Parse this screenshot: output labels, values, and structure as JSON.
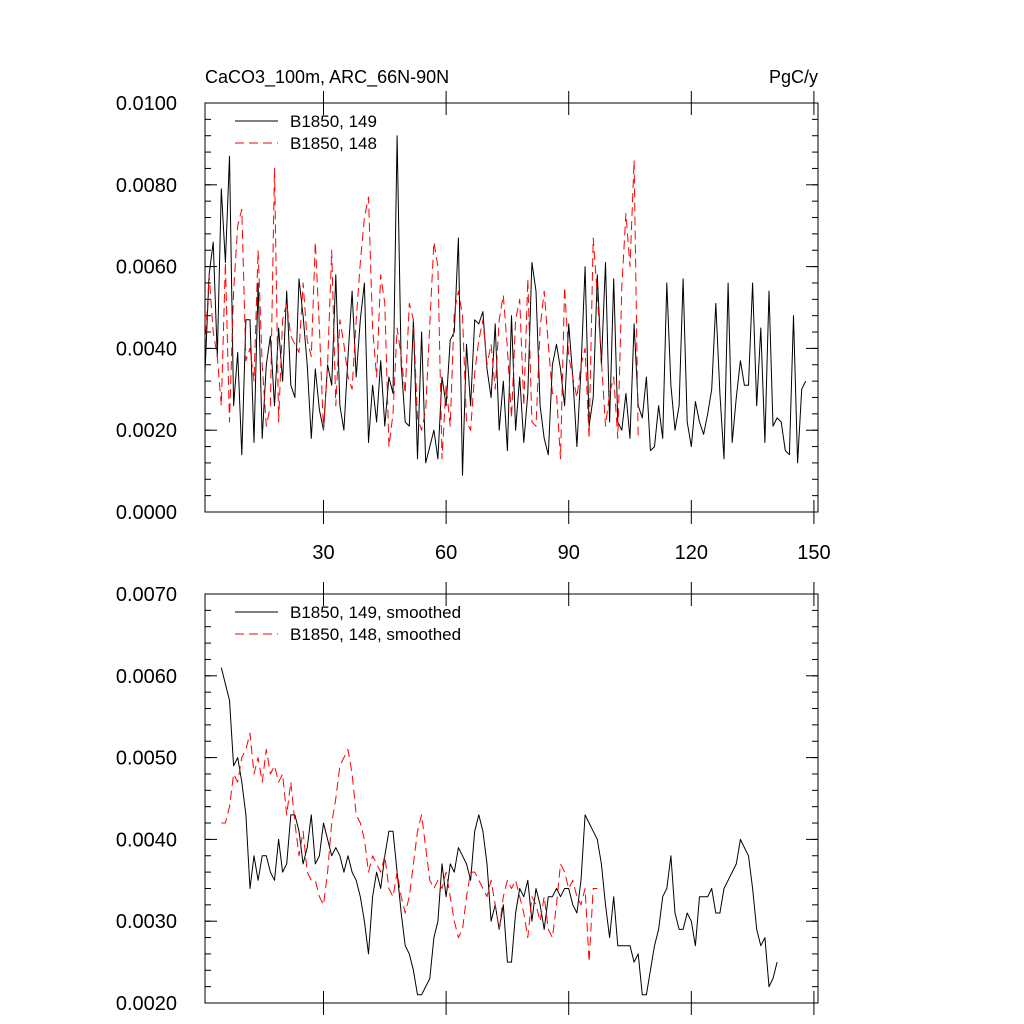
{
  "chart_data": [
    {
      "type": "line",
      "title": "CaCO3_100m, ARC_66N-90N",
      "units": "PgC/y",
      "xlim": [
        1,
        151
      ],
      "ylim": [
        0.0,
        0.01
      ],
      "yticks": [
        0.0,
        0.002,
        0.004,
        0.006,
        0.008,
        0.01
      ],
      "ytick_labels": [
        "0.0000",
        "0.0020",
        "0.0040",
        "0.0060",
        "0.0080",
        "0.0100"
      ],
      "xticks": [
        30,
        60,
        90,
        120,
        150
      ],
      "xtick_labels": [
        "30",
        "60",
        "90",
        "120",
        "150"
      ],
      "legend_position": "top-left",
      "series": [
        {
          "name": "B1850, 149",
          "color": "#000000",
          "dash": "solid",
          "x_start": 1,
          "values": [
            0.0034,
            0.0058,
            0.0066,
            0.0038,
            0.0079,
            0.0061,
            0.0087,
            0.0026,
            0.0039,
            0.0014,
            0.0047,
            0.0047,
            0.0017,
            0.0056,
            0.0018,
            0.0036,
            0.0043,
            0.0026,
            0.0045,
            0.0032,
            0.0054,
            0.0031,
            0.0028,
            0.0057,
            0.0048,
            0.0036,
            0.0018,
            0.0035,
            0.0025,
            0.002,
            0.0036,
            0.0031,
            0.0058,
            0.0026,
            0.002,
            0.0038,
            0.0054,
            0.0033,
            0.0047,
            0.0056,
            0.0017,
            0.0031,
            0.0022,
            0.0037,
            0.0021,
            0.0033,
            0.0029,
            0.0092,
            0.0036,
            0.0022,
            0.0021,
            0.0047,
            0.0013,
            0.0044,
            0.0012,
            0.0016,
            0.002,
            0.0013,
            0.0033,
            0.0026,
            0.0042,
            0.0044,
            0.0067,
            0.0009,
            0.0041,
            0.0026,
            0.0047,
            0.0046,
            0.0049,
            0.0035,
            0.0028,
            0.0046,
            0.002,
            0.0032,
            0.0015,
            0.0048,
            0.002,
            0.0033,
            0.0017,
            0.0029,
            0.0061,
            0.0054,
            0.0026,
            0.0018,
            0.0014,
            0.0036,
            0.0041,
            0.0035,
            0.0026,
            0.0046,
            0.0033,
            0.0016,
            0.0035,
            0.006,
            0.0021,
            0.0028,
            0.0058,
            0.0036,
            0.0061,
            0.0022,
            0.0057,
            0.0022,
            0.002,
            0.0029,
            0.0018,
            0.0046,
            0.0026,
            0.0023,
            0.0033,
            0.0015,
            0.0016,
            0.0026,
            0.0018,
            0.0056,
            0.0031,
            0.002,
            0.0026,
            0.0057,
            0.0022,
            0.0016,
            0.0027,
            0.0022,
            0.0019,
            0.0024,
            0.003,
            0.0051,
            0.0029,
            0.0013,
            0.0056,
            0.0017,
            0.0028,
            0.0037,
            0.0031,
            0.0031,
            0.0056,
            0.0026,
            0.0045,
            0.0017,
            0.0054,
            0.0021,
            0.0023,
            0.0022,
            0.0015,
            0.0014,
            0.0048,
            0.0012,
            0.003,
            0.0032
          ]
        },
        {
          "name": "B1850, 148",
          "color": "#ff0000",
          "dash": "dashed",
          "x_start": 1,
          "values": [
            0.004,
            0.0058,
            0.0044,
            0.0038,
            0.0026,
            0.0061,
            0.0022,
            0.0054,
            0.007,
            0.0074,
            0.0037,
            0.004,
            0.0032,
            0.0064,
            0.0036,
            0.0021,
            0.0026,
            0.0084,
            0.0022,
            0.0047,
            0.0051,
            0.0043,
            0.0041,
            0.0039,
            0.0056,
            0.0042,
            0.0038,
            0.0066,
            0.0045,
            0.002,
            0.0036,
            0.0064,
            0.0026,
            0.0047,
            0.0041,
            0.0033,
            0.003,
            0.0047,
            0.0061,
            0.0072,
            0.0077,
            0.0045,
            0.0033,
            0.0058,
            0.0051,
            0.0016,
            0.0024,
            0.0045,
            0.0038,
            0.0029,
            0.0051,
            0.0047,
            0.0023,
            0.002,
            0.0025,
            0.0046,
            0.0066,
            0.006,
            0.0013,
            0.0031,
            0.0021,
            0.0049,
            0.0054,
            0.0048,
            0.0022,
            0.002,
            0.0034,
            0.0042,
            0.0047,
            0.0036,
            0.0041,
            0.003,
            0.0047,
            0.0053,
            0.004,
            0.0023,
            0.0047,
            0.0052,
            0.0026,
            0.0057,
            0.0022,
            0.0021,
            0.0045,
            0.0054,
            0.0041,
            0.0029,
            0.0029,
            0.0013,
            0.0055,
            0.0038,
            0.0033,
            0.0028,
            0.0036,
            0.004,
            0.0018,
            0.0067,
            0.0053,
            0.0037,
            0.0021,
            0.0029,
            0.0033,
            0.0018,
            0.0055,
            0.0073,
            0.006,
            0.0086,
            0.0018
          ]
        }
      ]
    },
    {
      "type": "line",
      "xlim": [
        1,
        151
      ],
      "ylim": [
        0.002,
        0.007
      ],
      "yticks": [
        0.002,
        0.003,
        0.004,
        0.005,
        0.006,
        0.007
      ],
      "ytick_labels": [
        "0.0020",
        "0.0030",
        "0.0040",
        "0.0050",
        "0.0060",
        "0.0070"
      ],
      "xticks": [
        30,
        60,
        90,
        120,
        150
      ],
      "xtick_labels": [],
      "legend_position": "top-left",
      "series": [
        {
          "name": "B1850, 149, smoothed",
          "color": "#000000",
          "dash": "solid",
          "x_start": 5,
          "values": [
            0.0061,
            0.0059,
            0.0057,
            0.0049,
            0.005,
            0.0047,
            0.0043,
            0.0034,
            0.0038,
            0.0035,
            0.0038,
            0.0038,
            0.0036,
            0.0035,
            0.004,
            0.0036,
            0.0037,
            0.0043,
            0.0043,
            0.0041,
            0.0037,
            0.0039,
            0.0043,
            0.0037,
            0.0038,
            0.0042,
            0.004,
            0.0038,
            0.0039,
            0.0038,
            0.0036,
            0.0038,
            0.0036,
            0.0035,
            0.0033,
            0.003,
            0.0026,
            0.0033,
            0.0036,
            0.0034,
            0.0038,
            0.0041,
            0.0041,
            0.0036,
            0.0031,
            0.0027,
            0.0026,
            0.0024,
            0.0021,
            0.0021,
            0.0022,
            0.0023,
            0.0028,
            0.003,
            0.0037,
            0.0033,
            0.0037,
            0.0036,
            0.0039,
            0.0038,
            0.0037,
            0.0035,
            0.0041,
            0.0043,
            0.0041,
            0.0037,
            0.003,
            0.0032,
            0.0029,
            0.0032,
            0.0025,
            0.0025,
            0.0031,
            0.0034,
            0.0033,
            0.0035,
            0.003,
            0.0034,
            0.0032,
            0.0029,
            0.0033,
            0.0033,
            0.0034,
            0.0033,
            0.0034,
            0.0034,
            0.0032,
            0.0031,
            0.0035,
            0.0043,
            0.0042,
            0.0041,
            0.004,
            0.0037,
            0.0032,
            0.0028,
            0.0033,
            0.0027,
            0.0027,
            0.0027,
            0.0027,
            0.0025,
            0.0026,
            0.0021,
            0.0021,
            0.0024,
            0.0027,
            0.0029,
            0.0033,
            0.0034,
            0.0038,
            0.0031,
            0.0029,
            0.0029,
            0.0031,
            0.003,
            0.0027,
            0.0033,
            0.0033,
            0.0033,
            0.0034,
            0.0031,
            0.0031,
            0.0034,
            0.0035,
            0.0036,
            0.0037,
            0.004,
            0.0039,
            0.0038,
            0.0034,
            0.0029,
            0.0027,
            0.0028,
            0.0022,
            0.0023,
            0.0025
          ]
        },
        {
          "name": "B1850, 148, smoothed",
          "color": "#ff0000",
          "dash": "dashed",
          "x_start": 5,
          "values": [
            0.0042,
            0.0042,
            0.0044,
            0.0048,
            0.0047,
            0.005,
            0.0051,
            0.0053,
            0.0048,
            0.005,
            0.0047,
            0.0051,
            0.0048,
            0.0049,
            0.0047,
            0.0048,
            0.0043,
            0.0047,
            0.0042,
            0.0038,
            0.0041,
            0.0036,
            0.0035,
            0.0035,
            0.0033,
            0.0032,
            0.0036,
            0.0042,
            0.0045,
            0.0049,
            0.005,
            0.0051,
            0.0048,
            0.0043,
            0.0042,
            0.004,
            0.0036,
            0.0038,
            0.0037,
            0.0036,
            0.0038,
            0.0034,
            0.0033,
            0.0036,
            0.0033,
            0.0031,
            0.0033,
            0.0037,
            0.0041,
            0.0043,
            0.0039,
            0.0035,
            0.0034,
            0.0035,
            0.0034,
            0.0036,
            0.0033,
            0.003,
            0.0028,
            0.0029,
            0.0033,
            0.0036,
            0.0036,
            0.0035,
            0.0034,
            0.0033,
            0.0035,
            0.0032,
            0.0029,
            0.0033,
            0.0035,
            0.0034,
            0.0035,
            0.0033,
            0.0031,
            0.0028,
            0.0033,
            0.0032,
            0.003,
            0.0033,
            0.0029,
            0.0028,
            0.0032,
            0.0037,
            0.0036,
            0.0034,
            0.0035,
            0.0033,
            0.0032,
            0.0034,
            0.0025,
            0.0034,
            0.0034
          ]
        }
      ]
    }
  ]
}
